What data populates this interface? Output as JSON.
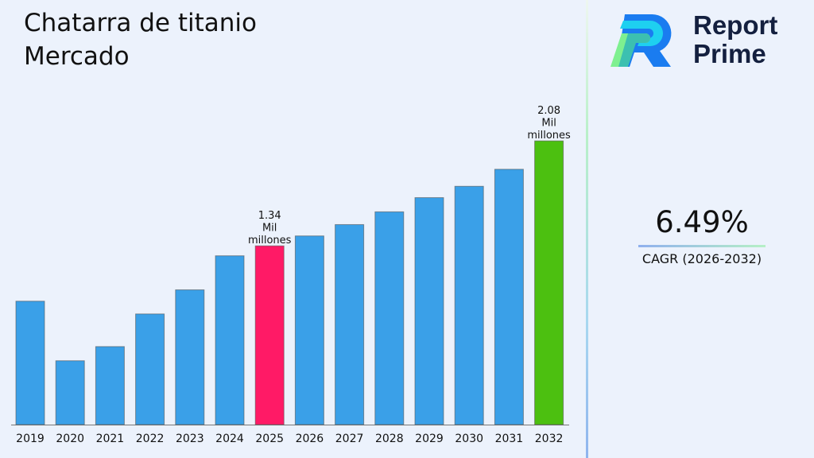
{
  "title": "Chatarra de titanio Mercado",
  "brand": {
    "line1": "Report",
    "line2": "Prime"
  },
  "cagr": {
    "value": "6.49%",
    "label": "CAGR (2026-2032)"
  },
  "colors": {
    "default": "#3aa0e8",
    "highlight_base": "#ff1a66",
    "highlight_end": "#4cc010"
  },
  "chart_data": {
    "type": "bar",
    "title": "Chatarra de titanio Mercado",
    "unit": "Mil millones",
    "categories": [
      "2019",
      "2020",
      "2021",
      "2022",
      "2023",
      "2024",
      "2025",
      "2026",
      "2027",
      "2028",
      "2029",
      "2030",
      "2031",
      "2032"
    ],
    "values": [
      0.95,
      0.53,
      0.63,
      0.86,
      1.03,
      1.27,
      1.34,
      1.41,
      1.49,
      1.58,
      1.68,
      1.76,
      1.88,
      2.08
    ],
    "ylim": [
      0.08,
      2.2
    ],
    "grid": false,
    "annotations": [
      {
        "category": "2025",
        "value_text": "1.34",
        "unit_line1": "Mil",
        "unit_line2": "millones"
      },
      {
        "category": "2032",
        "value_text": "2.08",
        "unit_line1": "Mil",
        "unit_line2": "millones"
      }
    ]
  }
}
